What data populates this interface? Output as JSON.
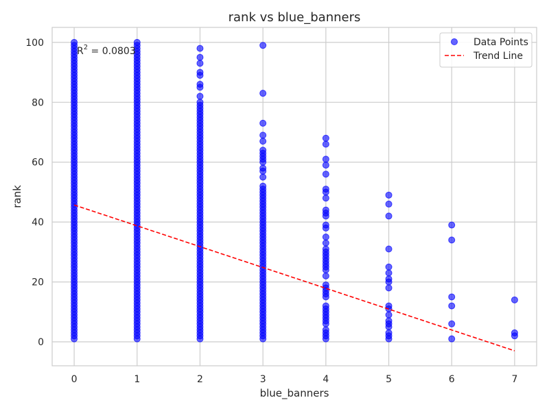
{
  "chart_data": {
    "type": "scatter",
    "title": "rank vs blue_banners",
    "xlabel": "blue_banners",
    "ylabel": "rank",
    "xlim": [
      -0.35,
      7.35
    ],
    "ylim": [
      -8,
      105
    ],
    "x_ticks": [
      0,
      1,
      2,
      3,
      4,
      5,
      6,
      7
    ],
    "y_ticks": [
      0,
      20,
      40,
      60,
      80,
      100
    ],
    "grid": true,
    "legend_position": "top-right",
    "annotation": {
      "prefix": "R",
      "superscript": "2",
      "suffix": " = 0.0803"
    },
    "series": [
      {
        "name": "Data Points",
        "kind": "scatter",
        "color": "#0000ff",
        "groups": [
          {
            "x": 0,
            "dense_range": [
              1,
              100
            ]
          },
          {
            "x": 1,
            "dense_range": [
              1,
              100
            ]
          },
          {
            "x": 2,
            "dense_range": [
              1,
              80
            ],
            "values": [
              98,
              95,
              93,
              90,
              89,
              86,
              85,
              82
            ]
          },
          {
            "x": 3,
            "dense_range": [
              1,
              52
            ],
            "values": [
              99,
              83,
              73,
              69,
              67,
              64,
              63,
              62,
              61,
              60,
              58,
              57,
              55
            ]
          },
          {
            "x": 4,
            "values": [
              68,
              66,
              61,
              59,
              56,
              51,
              50,
              48,
              44,
              43,
              42,
              39,
              38,
              35,
              33,
              31,
              30,
              29,
              28,
              27,
              26,
              25,
              24,
              22,
              19,
              18,
              17,
              16,
              15,
              12,
              11,
              10,
              9,
              8,
              7,
              6,
              4,
              3,
              2,
              1
            ]
          },
          {
            "x": 5,
            "values": [
              49,
              46,
              42,
              31,
              25,
              23,
              21,
              20,
              18,
              12,
              11,
              9,
              7,
              6,
              5,
              3,
              2,
              1
            ]
          },
          {
            "x": 6,
            "values": [
              39,
              34,
              15,
              12,
              6,
              1
            ]
          },
          {
            "x": 7,
            "values": [
              14,
              3,
              2
            ]
          }
        ]
      },
      {
        "name": "Trend Line",
        "kind": "line",
        "color": "#ff0000",
        "dash": true,
        "points": [
          [
            0,
            45.7
          ],
          [
            7,
            -3.0
          ]
        ]
      }
    ]
  }
}
